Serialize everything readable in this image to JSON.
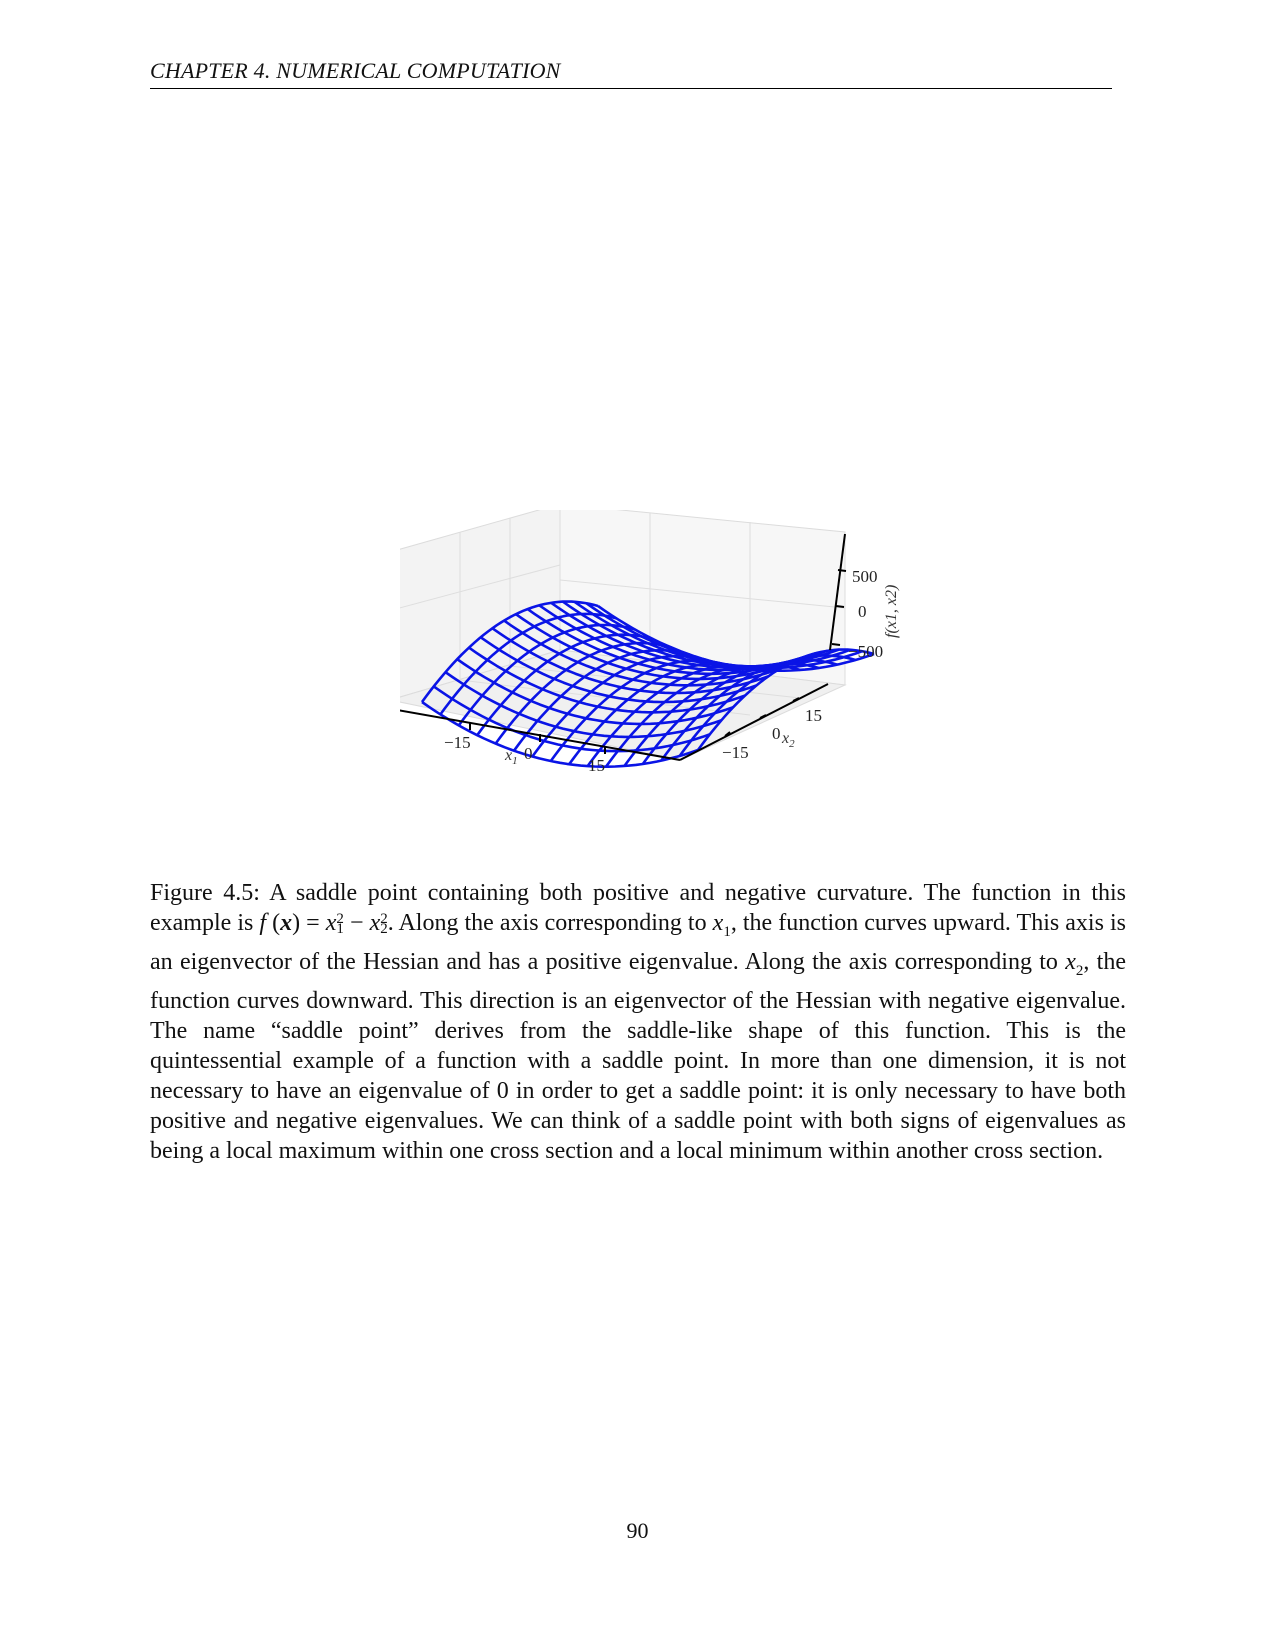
{
  "header": {
    "running_title": "CHAPTER 4.  NUMERICAL COMPUTATION"
  },
  "figure": {
    "mesh_color": "#0a14e6",
    "pane_color": "#dcdcdc",
    "axis_labels": {
      "x1": "x",
      "x1_sub": "1",
      "x2": "x",
      "x2_sub": "2",
      "z": "f(x1, x2)"
    },
    "x1_ticks": [
      "−15",
      "0",
      "15"
    ],
    "x2_ticks": [
      "−15",
      "0",
      "15"
    ],
    "z_ticks": [
      "500",
      "0",
      "−500"
    ]
  },
  "chart_data": {
    "type": "surface-wireframe",
    "function": "f(x1, x2) = x1^2 - x2^2",
    "x1_range": [
      -20,
      20
    ],
    "x2_range": [
      -20,
      20
    ],
    "z_ticks": [
      500,
      0,
      -500
    ],
    "x1_ticks": [
      -15,
      0,
      15
    ],
    "x2_ticks": [
      -15,
      0,
      15
    ],
    "grid": true
  },
  "caption": {
    "label": "Figure 4.5:",
    "s1": " A saddle point containing both positive and negative curvature. The function in this example is ",
    "f_sym": "f",
    "paren_open": " (",
    "x_sym": "x",
    "paren_close": ") = ",
    "x1_sym": "x",
    "x1_sup_sub": "2",
    "minus": " − ",
    "x2_sym": "x",
    "x2_sup_sub": "2",
    "s2": ". Along the axis corresponding to ",
    "axis1_sym": "x",
    "axis1_sub": "1",
    "s3": ", the function curves upward. This axis is an eigenvector of the Hessian and has a positive eigenvalue. Along the axis corresponding to ",
    "axis2_sym": "x",
    "axis2_sub": "2",
    "s4": ", the function curves downward. This direction is an eigenvector of the Hessian with negative eigenvalue. The name “saddle point” derives from the saddle-like shape of this function. This is the quintessential example of a function with a saddle point. In more than one dimension, it is not necessary to have an eigenvalue of 0 in order to get a saddle point: it is only necessary to have both positive and negative eigenvalues. We can think of a saddle point with both signs of eigenvalues as being a local maximum within one cross section and a local minimum within another cross section."
  },
  "page_number": "90"
}
